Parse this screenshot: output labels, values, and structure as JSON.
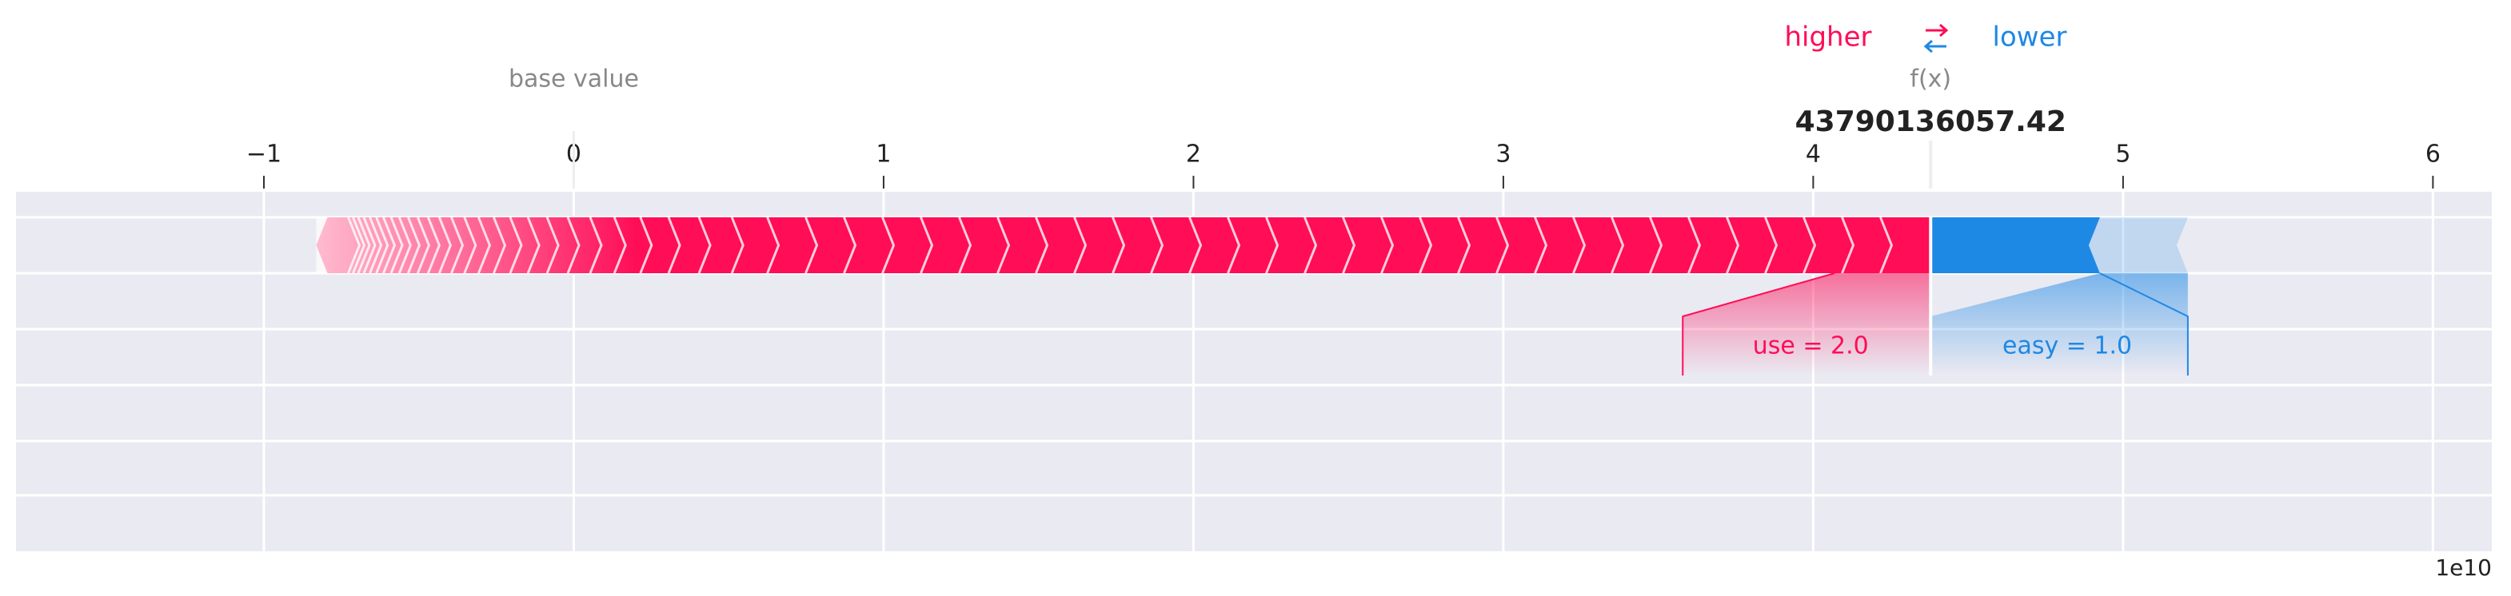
{
  "chart_data": {
    "type": "force",
    "legend_labels": [
      "higher",
      "lower"
    ],
    "base_label": "base value",
    "base_value": 0,
    "output_label": "f(x)",
    "output_value": 4.379013605742,
    "value_labels": {
      "output_value": "43790136057.42"
    },
    "features": [
      {
        "name": "use = 2.0",
        "value": 5.21,
        "color": "#ff0d57"
      },
      {
        "name": "easy = 1.0",
        "value": -0.83,
        "color": "#1e88e5"
      }
    ],
    "xlim": [
      -1.8,
      6.19
    ],
    "xticks": [
      {
        "value": -1,
        "label": "−1"
      },
      0,
      1,
      2,
      3,
      4,
      5,
      6
    ],
    "offset_label": "1e10",
    "grid": true
  }
}
